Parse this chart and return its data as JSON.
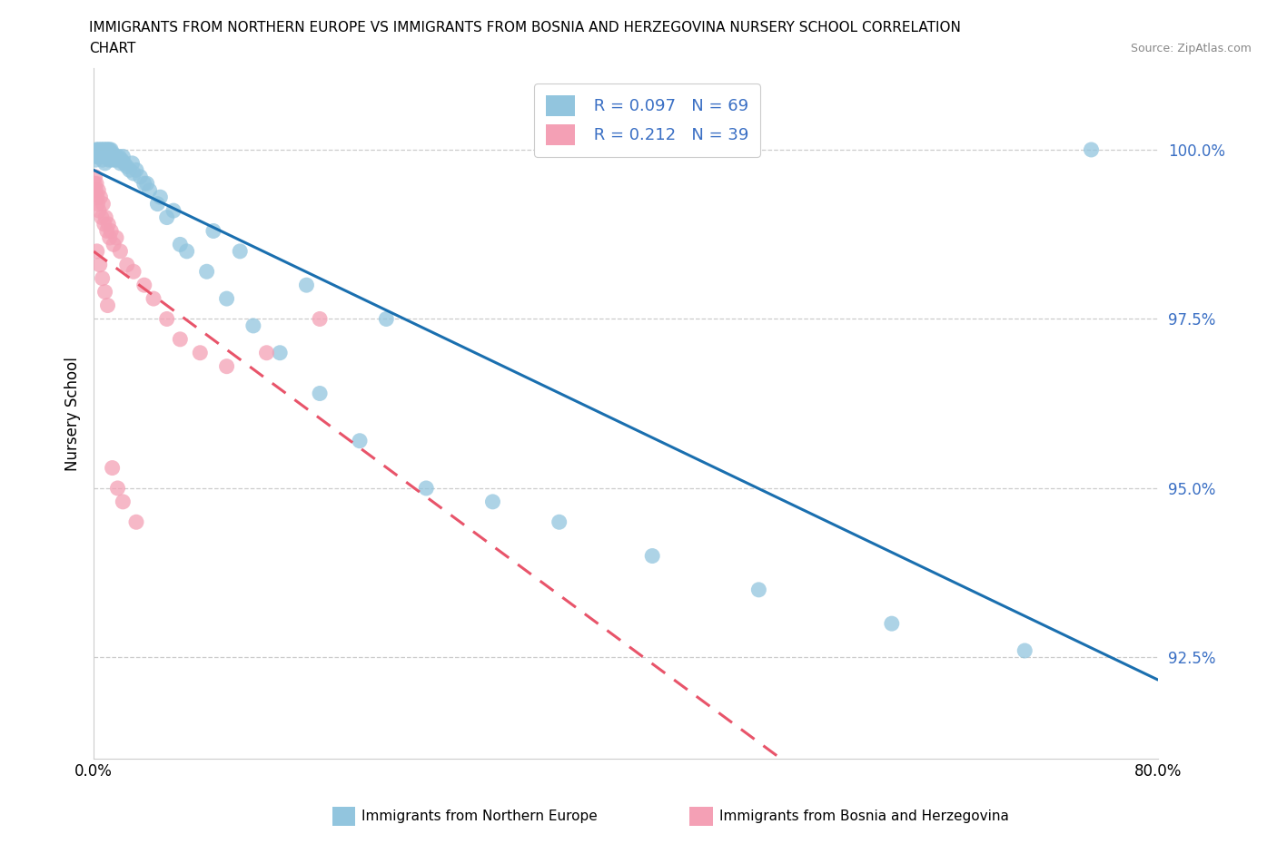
{
  "title_line1": "IMMIGRANTS FROM NORTHERN EUROPE VS IMMIGRANTS FROM BOSNIA AND HERZEGOVINA NURSERY SCHOOL CORRELATION",
  "title_line2": "CHART",
  "source": "Source: ZipAtlas.com",
  "ylabel": "Nursery School",
  "xlim": [
    0.0,
    80.0
  ],
  "ylim": [
    91.0,
    101.2
  ],
  "ytick_values": [
    92.5,
    95.0,
    97.5,
    100.0
  ],
  "xtick_values": [
    0.0,
    80.0
  ],
  "legend_label1": "Immigrants from Northern Europe",
  "legend_label2": "Immigrants from Bosnia and Herzegovina",
  "R1": 0.097,
  "N1": 69,
  "R2": 0.212,
  "N2": 39,
  "color_blue": "#92c5de",
  "color_pink": "#f4a0b5",
  "line_color_blue": "#1a6faf",
  "line_color_pink": "#e8546a",
  "blue_x": [
    0.1,
    0.15,
    0.2,
    0.25,
    0.3,
    0.35,
    0.4,
    0.45,
    0.5,
    0.55,
    0.6,
    0.65,
    0.7,
    0.75,
    0.8,
    0.85,
    0.9,
    0.95,
    1.0,
    1.05,
    1.1,
    1.15,
    1.2,
    1.25,
    1.3,
    1.35,
    1.4,
    1.5,
    1.6,
    1.7,
    1.8,
    1.9,
    2.0,
    2.1,
    2.2,
    2.3,
    2.5,
    2.7,
    2.9,
    3.2,
    3.5,
    3.8,
    4.2,
    4.8,
    5.5,
    6.5,
    7.0,
    8.5,
    10.0,
    12.0,
    14.0,
    17.0,
    20.0,
    25.0,
    30.0,
    35.0,
    42.0,
    50.0,
    60.0,
    70.0,
    3.0,
    4.0,
    5.0,
    6.0,
    9.0,
    11.0,
    16.0,
    22.0,
    75.0
  ],
  "blue_y": [
    99.9,
    99.85,
    100.0,
    99.95,
    100.0,
    99.9,
    100.0,
    99.95,
    99.9,
    100.0,
    100.0,
    99.85,
    99.9,
    100.0,
    100.0,
    99.8,
    99.9,
    100.0,
    100.0,
    99.9,
    100.0,
    99.85,
    100.0,
    99.9,
    100.0,
    99.85,
    99.95,
    99.9,
    99.85,
    99.9,
    99.85,
    99.9,
    99.8,
    99.85,
    99.9,
    99.8,
    99.75,
    99.7,
    99.8,
    99.7,
    99.6,
    99.5,
    99.4,
    99.2,
    99.0,
    98.6,
    98.5,
    98.2,
    97.8,
    97.4,
    97.0,
    96.4,
    95.7,
    95.0,
    94.8,
    94.5,
    94.0,
    93.5,
    93.0,
    92.6,
    99.65,
    99.5,
    99.3,
    99.1,
    98.8,
    98.5,
    98.0,
    97.5,
    100.0
  ],
  "pink_x": [
    0.05,
    0.1,
    0.15,
    0.2,
    0.25,
    0.3,
    0.35,
    0.4,
    0.5,
    0.6,
    0.7,
    0.8,
    0.9,
    1.0,
    1.1,
    1.2,
    1.3,
    1.5,
    1.7,
    2.0,
    2.5,
    3.0,
    3.8,
    4.5,
    5.5,
    6.5,
    8.0,
    10.0,
    13.0,
    17.0,
    0.25,
    0.45,
    0.65,
    0.85,
    1.05,
    1.4,
    1.8,
    2.2,
    3.2
  ],
  "pink_y": [
    99.5,
    99.6,
    99.4,
    99.5,
    99.3,
    99.2,
    99.4,
    99.1,
    99.3,
    99.0,
    99.2,
    98.9,
    99.0,
    98.8,
    98.9,
    98.7,
    98.8,
    98.6,
    98.7,
    98.5,
    98.3,
    98.2,
    98.0,
    97.8,
    97.5,
    97.2,
    97.0,
    96.8,
    97.0,
    97.5,
    98.5,
    98.3,
    98.1,
    97.9,
    97.7,
    95.3,
    95.0,
    94.8,
    94.5
  ]
}
